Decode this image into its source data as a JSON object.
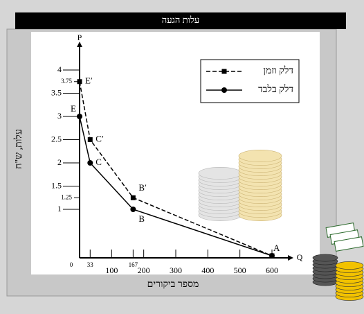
{
  "chart_data": {
    "type": "line",
    "title": "עלות הגעה",
    "y_label": "עלות, ש\"ח",
    "x_label": "מספר ביקורים",
    "y_axis_name": "P",
    "x_axis_name": "Q",
    "xlim": [
      0,
      600
    ],
    "ylim": [
      0,
      4
    ],
    "xticks": [
      0,
      33,
      100,
      167,
      200,
      300,
      400,
      500,
      600
    ],
    "yticks": [
      1,
      1.25,
      1.5,
      2,
      2.5,
      3,
      3.5,
      3.75,
      4
    ],
    "legend": "top-right",
    "series": [
      {
        "name": "דלק וזמן",
        "color": "#000000",
        "dashed": true,
        "marker": "square",
        "x": [
          0,
          33,
          167,
          600
        ],
        "values": [
          3.75,
          2.5,
          1.25,
          0
        ],
        "point_labels": [
          "E′",
          "C′",
          "B′",
          null
        ]
      },
      {
        "name": "דלק בלבד",
        "color": "#000000",
        "dashed": false,
        "marker": "circle",
        "x": [
          0,
          33,
          167,
          600
        ],
        "values": [
          3,
          2,
          1,
          0
        ],
        "point_labels": [
          "E",
          "C",
          "B",
          "A"
        ]
      }
    ]
  }
}
